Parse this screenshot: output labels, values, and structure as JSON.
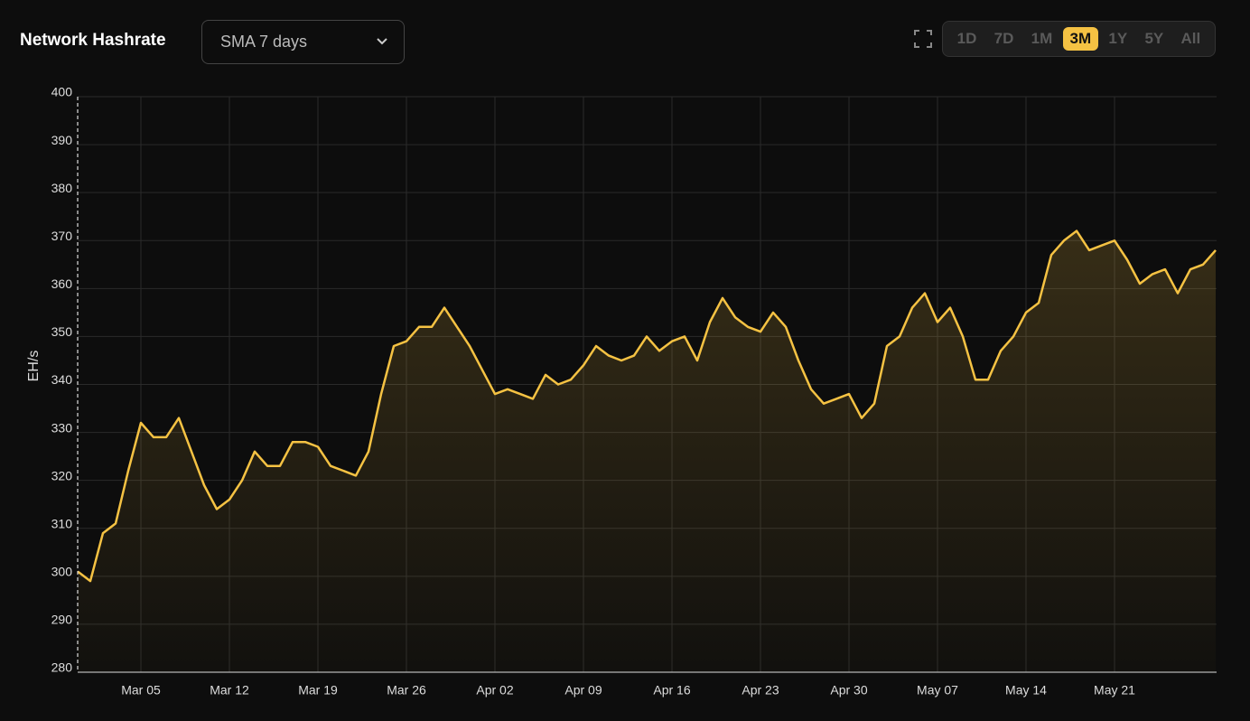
{
  "header": {
    "title": "Network Hashrate",
    "dropdown": "SMA 7 days",
    "ranges": [
      "1D",
      "7D",
      "1M",
      "3M",
      "1Y",
      "5Y",
      "All"
    ],
    "active_range": "3M"
  },
  "chart_data": {
    "type": "line",
    "y_label": "EH/s",
    "color": "#f5c243",
    "grid": true,
    "categories": [
      null,
      null,
      null,
      null,
      null,
      "Mar 05",
      null,
      null,
      null,
      null,
      null,
      null,
      "Mar 12",
      null,
      null,
      null,
      null,
      null,
      null,
      "Mar 19",
      null,
      null,
      null,
      null,
      null,
      null,
      "Mar 26",
      null,
      null,
      null,
      null,
      null,
      null,
      "Apr 02",
      null,
      null,
      null,
      null,
      null,
      null,
      "Apr 09",
      null,
      null,
      null,
      null,
      null,
      null,
      "Apr 16",
      null,
      null,
      null,
      null,
      null,
      null,
      "Apr 23",
      null,
      null,
      null,
      null,
      null,
      null,
      "Apr 30",
      null,
      null,
      null,
      null,
      null,
      null,
      "May 07",
      null,
      null,
      null,
      null,
      null,
      null,
      "May 14",
      null,
      null,
      null,
      null,
      null,
      null,
      "May 21",
      null,
      null,
      null,
      null,
      null,
      null,
      null,
      null
    ],
    "values": [
      301,
      299,
      309,
      311,
      322,
      332,
      329,
      329,
      333,
      326,
      319,
      314,
      316,
      320,
      326,
      323,
      323,
      328,
      328,
      327,
      323,
      322,
      321,
      326,
      338,
      348,
      349,
      352,
      352,
      356,
      352,
      348,
      343,
      338,
      339,
      338,
      337,
      342,
      340,
      341,
      344,
      348,
      346,
      345,
      346,
      350,
      347,
      349,
      350,
      345,
      353,
      358,
      354,
      352,
      351,
      355,
      352,
      345,
      339,
      336,
      337,
      338,
      333,
      336,
      348,
      350,
      356,
      359,
      353,
      356,
      350,
      341,
      341,
      347,
      350,
      355,
      357,
      367,
      370,
      372,
      368,
      369,
      370,
      366,
      361,
      363,
      364,
      359,
      364,
      365,
      368
    ],
    "ylim": [
      280,
      400
    ],
    "yticks": [
      280,
      290,
      300,
      310,
      320,
      330,
      340,
      350,
      360,
      370,
      380,
      390,
      400
    ]
  }
}
